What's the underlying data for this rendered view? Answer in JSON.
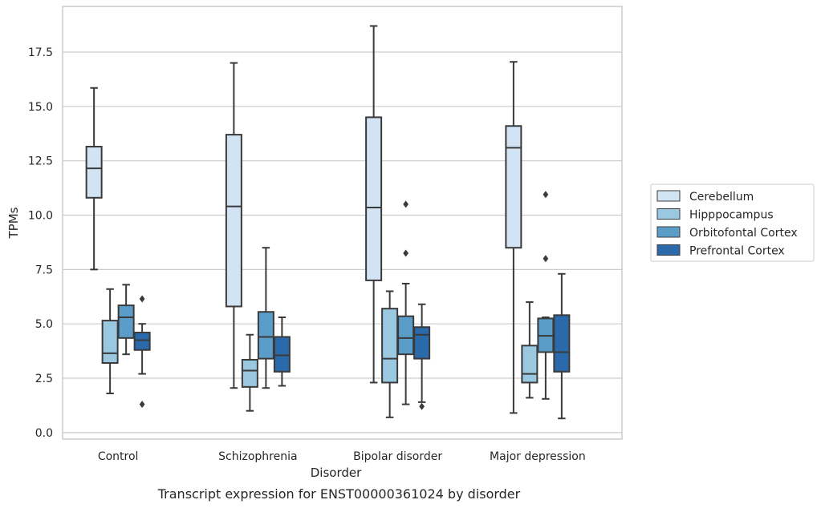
{
  "chart_data": {
    "type": "box",
    "xlabel": "Disorder",
    "ylabel": "TPMs",
    "caption": "Transcript expression for ENST00000361024 by disorder",
    "ylim": [
      -0.3,
      19.6
    ],
    "yticks": [
      0.0,
      2.5,
      5.0,
      7.5,
      10.0,
      12.5,
      15.0,
      17.5
    ],
    "ytick_labels": [
      "0.0",
      "2.5",
      "5.0",
      "7.5",
      "10.0",
      "12.5",
      "15.0",
      "17.5"
    ],
    "grid": "horizontal",
    "legend_position": "right",
    "categories": [
      "Control",
      "Schizophrenia",
      "Bipolar disorder",
      "Major depression"
    ],
    "series": [
      {
        "name": "Cerebellum",
        "color": "#d2e3f3",
        "boxes": [
          {
            "whislo": 7.5,
            "q1": 10.8,
            "med": 12.15,
            "q3": 13.15,
            "whishi": 15.85,
            "fliers": []
          },
          {
            "whislo": 2.05,
            "q1": 5.8,
            "med": 10.4,
            "q3": 13.7,
            "whishi": 17.0,
            "fliers": []
          },
          {
            "whislo": 2.3,
            "q1": 7.0,
            "med": 10.35,
            "q3": 14.5,
            "whishi": 18.7,
            "fliers": []
          },
          {
            "whislo": 0.9,
            "q1": 8.5,
            "med": 13.1,
            "q3": 14.1,
            "whishi": 17.05,
            "fliers": []
          }
        ]
      },
      {
        "name": "Hipppocampus",
        "color": "#9ac8e0",
        "boxes": [
          {
            "whislo": 1.8,
            "q1": 3.2,
            "med": 3.65,
            "q3": 5.15,
            "whishi": 6.6,
            "fliers": []
          },
          {
            "whislo": 1.0,
            "q1": 2.1,
            "med": 2.85,
            "q3": 3.35,
            "whishi": 4.5,
            "fliers": []
          },
          {
            "whislo": 0.7,
            "q1": 2.3,
            "med": 3.4,
            "q3": 5.7,
            "whishi": 6.5,
            "fliers": []
          },
          {
            "whislo": 1.6,
            "q1": 2.3,
            "med": 2.7,
            "q3": 4.0,
            "whishi": 6.0,
            "fliers": []
          }
        ]
      },
      {
        "name": "Orbitofontal Cortex",
        "color": "#5a9dc9",
        "boxes": [
          {
            "whislo": 3.6,
            "q1": 4.35,
            "med": 5.3,
            "q3": 5.85,
            "whishi": 6.8,
            "fliers": []
          },
          {
            "whislo": 2.05,
            "q1": 3.4,
            "med": 4.4,
            "q3": 5.55,
            "whishi": 8.5,
            "fliers": []
          },
          {
            "whislo": 1.3,
            "q1": 3.6,
            "med": 4.35,
            "q3": 5.35,
            "whishi": 6.85,
            "fliers": [
              8.25,
              10.5
            ]
          },
          {
            "whislo": 1.55,
            "q1": 3.7,
            "med": 4.45,
            "q3": 5.25,
            "whishi": 5.3,
            "fliers": [
              8.0,
              10.95
            ]
          }
        ]
      },
      {
        "name": "Prefrontal Cortex",
        "color": "#2b6aaa",
        "boxes": [
          {
            "whislo": 2.7,
            "q1": 3.8,
            "med": 4.25,
            "q3": 4.6,
            "whishi": 5.0,
            "fliers": [
              1.3,
              6.15
            ]
          },
          {
            "whislo": 2.15,
            "q1": 2.8,
            "med": 3.55,
            "q3": 4.4,
            "whishi": 5.3,
            "fliers": []
          },
          {
            "whislo": 1.4,
            "q1": 3.4,
            "med": 4.5,
            "q3": 4.85,
            "whishi": 5.9,
            "fliers": [
              1.2
            ]
          },
          {
            "whislo": 0.65,
            "q1": 2.8,
            "med": 3.7,
            "q3": 5.4,
            "whishi": 7.3,
            "fliers": []
          }
        ]
      }
    ]
  }
}
